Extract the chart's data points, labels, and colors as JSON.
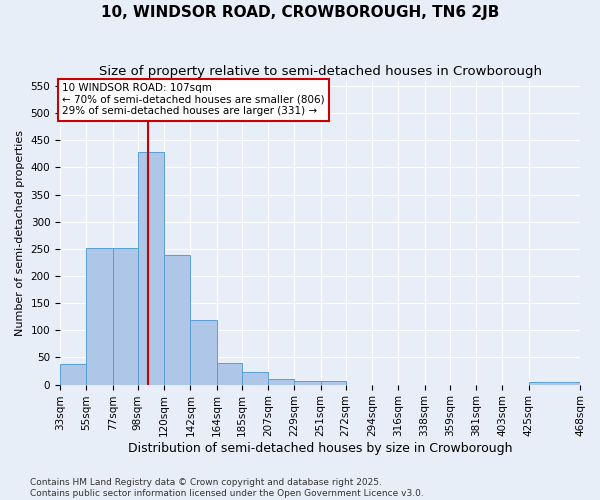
{
  "title": "10, WINDSOR ROAD, CROWBOROUGH, TN6 2JB",
  "subtitle": "Size of property relative to semi-detached houses in Crowborough",
  "xlabel": "Distribution of semi-detached houses by size in Crowborough",
  "ylabel": "Number of semi-detached properties",
  "bar_values": [
    38,
    251,
    251,
    428,
    238,
    119,
    40,
    24,
    11,
    7,
    7,
    0,
    0,
    0,
    0,
    0,
    0,
    0,
    5
  ],
  "bin_edges": [
    33,
    55,
    77,
    98,
    120,
    142,
    164,
    185,
    207,
    229,
    251,
    272,
    294,
    316,
    338,
    359,
    381,
    403,
    425,
    468
  ],
  "bin_labels": [
    "33sqm",
    "55sqm",
    "77sqm",
    "98sqm",
    "120sqm",
    "142sqm",
    "164sqm",
    "185sqm",
    "207sqm",
    "229sqm",
    "251sqm",
    "272sqm",
    "294sqm",
    "316sqm",
    "338sqm",
    "359sqm",
    "381sqm",
    "403sqm",
    "425sqm",
    "468sqm"
  ],
  "property_value": 107,
  "bar_color": "#aec6e8",
  "bar_edge_color": "#5a9fd4",
  "annotation_line1": "10 WINDSOR ROAD: 107sqm",
  "annotation_line2": "← 70% of semi-detached houses are smaller (806)",
  "annotation_line3": "29% of semi-detached houses are larger (331) →",
  "annotation_box_color": "#ffffff",
  "annotation_box_edge": "#cc0000",
  "red_line_color": "#cc0000",
  "ylim": [
    0,
    560
  ],
  "yticks": [
    0,
    50,
    100,
    150,
    200,
    250,
    300,
    350,
    400,
    450,
    500,
    550
  ],
  "background_color": "#e8eef8",
  "grid_color": "#ffffff",
  "footer_text": "Contains HM Land Registry data © Crown copyright and database right 2025.\nContains public sector information licensed under the Open Government Licence v3.0.",
  "title_fontsize": 11,
  "subtitle_fontsize": 9.5,
  "xlabel_fontsize": 9,
  "ylabel_fontsize": 8,
  "tick_fontsize": 7.5,
  "annotation_fontsize": 7.5,
  "footer_fontsize": 6.5
}
